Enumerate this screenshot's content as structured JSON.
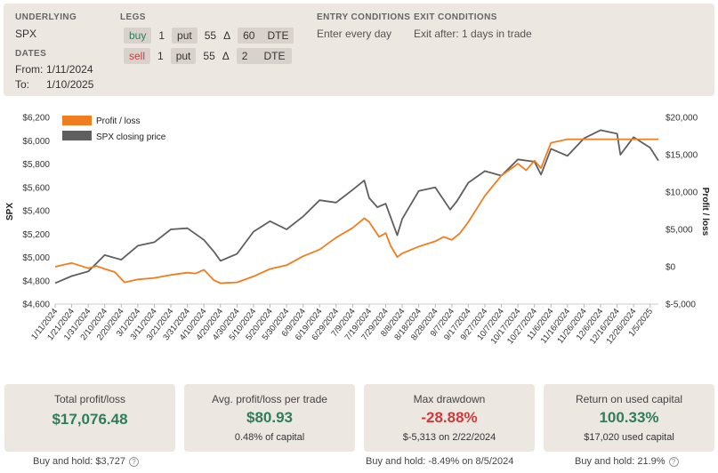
{
  "header": {
    "underlying_label": "UNDERLYING",
    "underlying_value": "SPX",
    "dates_label": "DATES",
    "from_label": "From:",
    "from_value": "1/11/2024",
    "to_label": "To:",
    "to_value": "1/10/2025",
    "legs_label": "LEGS",
    "legs": [
      {
        "side": "buy",
        "qty": "1",
        "type": "put",
        "delta": "55",
        "delta_symbol": "Δ",
        "dte": "60",
        "dte_label": "DTE"
      },
      {
        "side": "sell",
        "qty": "1",
        "type": "put",
        "delta": "55",
        "delta_symbol": "Δ",
        "dte": "2",
        "dte_label": "DTE"
      }
    ],
    "entry_label": "ENTRY CONDITIONS",
    "entry_value": "Enter every day",
    "exit_label": "EXIT CONDITIONS",
    "exit_value": "Exit after: 1 days in trade"
  },
  "colors": {
    "profit_loss": "#f07d1e",
    "spx": "#5f5f5f",
    "positive": "#2e7d5b",
    "negative": "#d03a3a",
    "panel": "#ede7e2"
  },
  "chart_data": {
    "type": "line",
    "title": "",
    "xlabel": "",
    "ylabel_left": "SPX",
    "ylabel_right": "Profit / loss",
    "legend_position": "top-left",
    "left_axis": {
      "min": 4600,
      "max": 6200,
      "ticks": [
        "$4,600",
        "$4,800",
        "$5,000",
        "$5,200",
        "$5,400",
        "$5,600",
        "$5,800",
        "$6,000",
        "$6,200"
      ]
    },
    "right_axis": {
      "min": -5000,
      "max": 20000,
      "ticks": [
        "$-5,000",
        "$0",
        "$5,000",
        "$10,000",
        "$15,000",
        "$20,000"
      ]
    },
    "x_ticks": [
      "1/11/2024",
      "1/21/2024",
      "1/31/2024",
      "2/10/2024",
      "2/20/2024",
      "3/1/2024",
      "3/11/2024",
      "3/21/2024",
      "3/31/2024",
      "4/10/2024",
      "4/20/2024",
      "4/30/2024",
      "5/10/2024",
      "5/20/2024",
      "5/30/2024",
      "6/9/2024",
      "6/19/2024",
      "6/29/2024",
      "7/9/2024",
      "7/19/2024",
      "7/29/2024",
      "8/8/2024",
      "8/18/2024",
      "8/28/2024",
      "9/7/2024",
      "9/17/2024",
      "9/27/2024",
      "10/7/2024",
      "10/17/2024",
      "10/27/2024",
      "11/6/2024",
      "11/16/2024",
      "11/26/2024",
      "12/6/2024",
      "12/16/2024",
      "12/26/2024",
      "1/5/2025"
    ],
    "series": [
      {
        "name": "Profit / loss",
        "axis": "right",
        "points": [
          [
            "1/11/2024",
            0
          ],
          [
            "1/21/2024",
            500
          ],
          [
            "1/31/2024",
            -200
          ],
          [
            "2/5/2024",
            100
          ],
          [
            "2/10/2024",
            -300
          ],
          [
            "2/16/2024",
            -700
          ],
          [
            "2/22/2024",
            -2100
          ],
          [
            "3/1/2024",
            -1700
          ],
          [
            "3/11/2024",
            -1500
          ],
          [
            "3/21/2024",
            -1100
          ],
          [
            "3/31/2024",
            -800
          ],
          [
            "4/5/2024",
            -900
          ],
          [
            "4/10/2024",
            -400
          ],
          [
            "4/16/2024",
            -1800
          ],
          [
            "4/20/2024",
            -2200
          ],
          [
            "4/30/2024",
            -2100
          ],
          [
            "5/10/2024",
            -1300
          ],
          [
            "5/20/2024",
            -300
          ],
          [
            "5/30/2024",
            200
          ],
          [
            "6/9/2024",
            1400
          ],
          [
            "6/19/2024",
            2300
          ],
          [
            "6/29/2024",
            3900
          ],
          [
            "7/9/2024",
            5200
          ],
          [
            "7/16/2024",
            6500
          ],
          [
            "7/19/2024",
            6000
          ],
          [
            "7/25/2024",
            4000
          ],
          [
            "7/29/2024",
            4500
          ],
          [
            "8/1/2024",
            2800
          ],
          [
            "8/5/2024",
            1300
          ],
          [
            "8/8/2024",
            1800
          ],
          [
            "8/18/2024",
            2700
          ],
          [
            "8/28/2024",
            3400
          ],
          [
            "9/2/2024",
            4000
          ],
          [
            "9/7/2024",
            3600
          ],
          [
            "9/12/2024",
            4500
          ],
          [
            "9/17/2024",
            6000
          ],
          [
            "9/27/2024",
            9500
          ],
          [
            "10/7/2024",
            12200
          ],
          [
            "10/17/2024",
            13800
          ],
          [
            "10/22/2024",
            12900
          ],
          [
            "10/27/2024",
            14200
          ],
          [
            "10/31/2024",
            13200
          ],
          [
            "11/6/2024",
            16600
          ],
          [
            "11/16/2024",
            17076
          ],
          [
            "12/6/2024",
            17076
          ],
          [
            "1/10/2025",
            17076
          ]
        ]
      },
      {
        "name": "SPX closing price",
        "axis": "left",
        "points": [
          [
            "1/11/2024",
            4780
          ],
          [
            "1/21/2024",
            4840
          ],
          [
            "1/31/2024",
            4880
          ],
          [
            "2/10/2024",
            5020
          ],
          [
            "2/20/2024",
            4980
          ],
          [
            "3/1/2024",
            5100
          ],
          [
            "3/11/2024",
            5130
          ],
          [
            "3/21/2024",
            5240
          ],
          [
            "3/31/2024",
            5250
          ],
          [
            "4/10/2024",
            5150
          ],
          [
            "4/16/2024",
            5050
          ],
          [
            "4/20/2024",
            4970
          ],
          [
            "4/30/2024",
            5030
          ],
          [
            "5/10/2024",
            5220
          ],
          [
            "5/20/2024",
            5310
          ],
          [
            "5/30/2024",
            5240
          ],
          [
            "6/9/2024",
            5350
          ],
          [
            "6/19/2024",
            5490
          ],
          [
            "6/29/2024",
            5470
          ],
          [
            "7/9/2024",
            5580
          ],
          [
            "7/16/2024",
            5660
          ],
          [
            "7/19/2024",
            5510
          ],
          [
            "7/24/2024",
            5430
          ],
          [
            "7/29/2024",
            5460
          ],
          [
            "8/5/2024",
            5190
          ],
          [
            "8/8/2024",
            5330
          ],
          [
            "8/18/2024",
            5570
          ],
          [
            "8/28/2024",
            5600
          ],
          [
            "9/6/2024",
            5410
          ],
          [
            "9/10/2024",
            5480
          ],
          [
            "9/17/2024",
            5640
          ],
          [
            "9/27/2024",
            5740
          ],
          [
            "10/7/2024",
            5700
          ],
          [
            "10/17/2024",
            5840
          ],
          [
            "10/27/2024",
            5820
          ],
          [
            "10/31/2024",
            5710
          ],
          [
            "11/6/2024",
            5930
          ],
          [
            "11/16/2024",
            5870
          ],
          [
            "11/26/2024",
            6020
          ],
          [
            "12/6/2024",
            6090
          ],
          [
            "12/16/2024",
            6060
          ],
          [
            "12/18/2024",
            5880
          ],
          [
            "12/26/2024",
            6030
          ],
          [
            "1/5/2025",
            5940
          ],
          [
            "1/10/2025",
            5830
          ]
        ]
      }
    ]
  },
  "cards": [
    {
      "title": "Total profit/loss",
      "value": "$17,076.48",
      "sub": "",
      "below": "Buy and hold: $3,727",
      "tone": "green"
    },
    {
      "title": "Avg. profit/loss per trade",
      "value": "$80.93",
      "sub": "0.48% of capital",
      "below": "",
      "tone": "green"
    },
    {
      "title": "Max drawdown",
      "value": "-28.88%",
      "sub": "$-5,313 on 2/22/2024",
      "below": "Buy and hold: -8.49% on 8/5/2024",
      "tone": "red"
    },
    {
      "title": "Return on used capital",
      "value": "100.33%",
      "sub": "$17,020 used capital",
      "below": "Buy and hold: 21.9%",
      "tone": "green"
    }
  ],
  "icons": {
    "info": "question-circle-icon",
    "info_glyph": "?"
  }
}
